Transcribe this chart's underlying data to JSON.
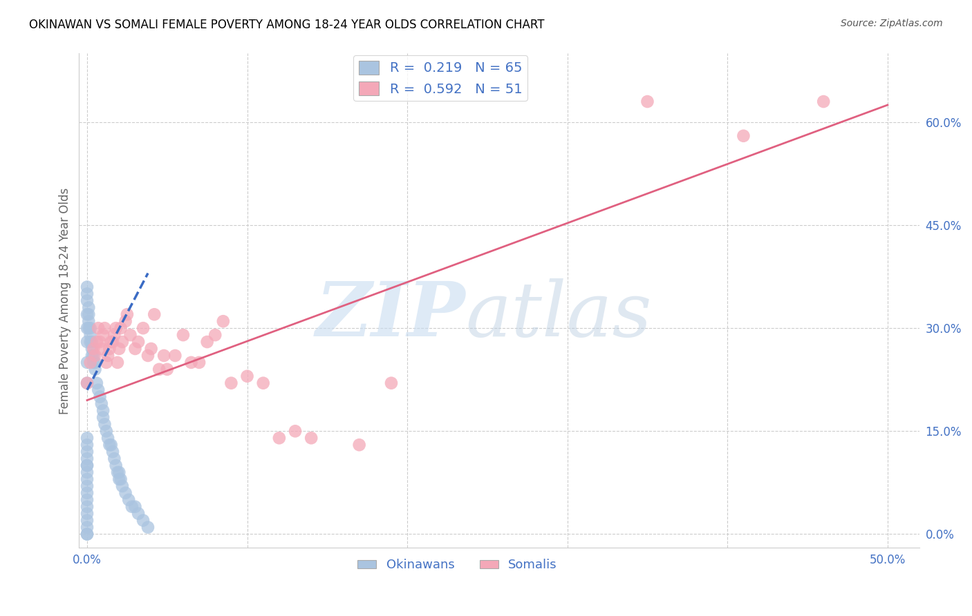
{
  "title": "OKINAWAN VS SOMALI FEMALE POVERTY AMONG 18-24 YEAR OLDS CORRELATION CHART",
  "source": "Source: ZipAtlas.com",
  "ylabel": "Female Poverty Among 18-24 Year Olds",
  "xlim": [
    -0.005,
    0.52
  ],
  "ylim": [
    -0.02,
    0.7
  ],
  "okinawan_color": "#aac4e0",
  "somali_color": "#f4a8b8",
  "okinawan_line_color": "#3a6bc4",
  "somali_line_color": "#e06080",
  "background_color": "#ffffff",
  "grid_color": "#cccccc",
  "ok_x": [
    0.0,
    0.0,
    0.0,
    0.0,
    0.0,
    0.0,
    0.0,
    0.0,
    0.0,
    0.0,
    0.0,
    0.0,
    0.0,
    0.0,
    0.0,
    0.0,
    0.0,
    0.0,
    0.0,
    0.0,
    0.0,
    0.0,
    0.0,
    0.0,
    0.0,
    0.001,
    0.001,
    0.001,
    0.001,
    0.002,
    0.002,
    0.002,
    0.003,
    0.003,
    0.003,
    0.004,
    0.004,
    0.005,
    0.005,
    0.006,
    0.007,
    0.008,
    0.009,
    0.01,
    0.01,
    0.011,
    0.012,
    0.013,
    0.014,
    0.015,
    0.016,
    0.017,
    0.018,
    0.019,
    0.02,
    0.02,
    0.021,
    0.022,
    0.024,
    0.026,
    0.028,
    0.03,
    0.032,
    0.035,
    0.038
  ],
  "ok_y": [
    0.0,
    0.0,
    0.01,
    0.02,
    0.03,
    0.04,
    0.05,
    0.06,
    0.07,
    0.08,
    0.09,
    0.1,
    0.1,
    0.11,
    0.12,
    0.13,
    0.14,
    0.22,
    0.25,
    0.28,
    0.3,
    0.32,
    0.34,
    0.35,
    0.36,
    0.3,
    0.31,
    0.32,
    0.33,
    0.28,
    0.29,
    0.3,
    0.26,
    0.27,
    0.28,
    0.25,
    0.26,
    0.24,
    0.25,
    0.22,
    0.21,
    0.2,
    0.19,
    0.18,
    0.17,
    0.16,
    0.15,
    0.14,
    0.13,
    0.13,
    0.12,
    0.11,
    0.1,
    0.09,
    0.08,
    0.09,
    0.08,
    0.07,
    0.06,
    0.05,
    0.04,
    0.04,
    0.03,
    0.02,
    0.01
  ],
  "so_x": [
    0.0,
    0.002,
    0.004,
    0.005,
    0.006,
    0.007,
    0.008,
    0.009,
    0.01,
    0.011,
    0.012,
    0.013,
    0.014,
    0.015,
    0.016,
    0.017,
    0.018,
    0.019,
    0.02,
    0.021,
    0.022,
    0.024,
    0.025,
    0.027,
    0.03,
    0.032,
    0.035,
    0.038,
    0.04,
    0.042,
    0.045,
    0.048,
    0.05,
    0.055,
    0.06,
    0.065,
    0.07,
    0.075,
    0.08,
    0.085,
    0.09,
    0.1,
    0.11,
    0.12,
    0.13,
    0.14,
    0.17,
    0.19,
    0.35,
    0.41,
    0.46
  ],
  "so_y": [
    0.22,
    0.25,
    0.27,
    0.26,
    0.28,
    0.3,
    0.28,
    0.27,
    0.29,
    0.3,
    0.25,
    0.26,
    0.27,
    0.28,
    0.28,
    0.29,
    0.3,
    0.25,
    0.27,
    0.3,
    0.28,
    0.31,
    0.32,
    0.29,
    0.27,
    0.28,
    0.3,
    0.26,
    0.27,
    0.32,
    0.24,
    0.26,
    0.24,
    0.26,
    0.29,
    0.25,
    0.25,
    0.28,
    0.29,
    0.31,
    0.22,
    0.23,
    0.22,
    0.14,
    0.15,
    0.14,
    0.13,
    0.22,
    0.63,
    0.58,
    0.63
  ],
  "ok_trend_x": [
    0.0,
    0.038
  ],
  "ok_trend_y": [
    0.21,
    0.38
  ],
  "so_trend_x": [
    0.0,
    0.5
  ],
  "so_trend_y": [
    0.195,
    0.625
  ]
}
